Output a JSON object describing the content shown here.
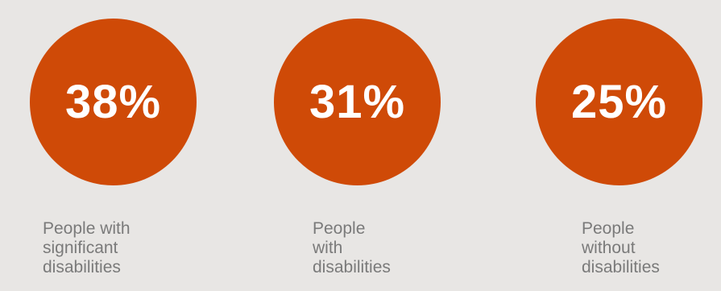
{
  "colors": {
    "background": "#e8e6e4",
    "circle": "#cf4a07",
    "value_text": "#ffffff",
    "label_text": "#7a7a7a"
  },
  "chart_data": {
    "type": "bar",
    "categories": [
      "People with significant disabilities",
      "People with disabilities",
      "People without disabilities"
    ],
    "values": [
      38,
      31,
      25
    ],
    "value_labels": [
      "38%",
      "31%",
      "25%"
    ],
    "unit": "%",
    "title": "",
    "xlabel": "",
    "ylabel": ""
  },
  "stats": [
    {
      "value": "38%",
      "label": "People with\nsignificant\ndisabilities"
    },
    {
      "value": "31%",
      "label": "People with\ndisabilities"
    },
    {
      "value": "25%",
      "label": "People\nwithout\ndisabilities"
    }
  ]
}
